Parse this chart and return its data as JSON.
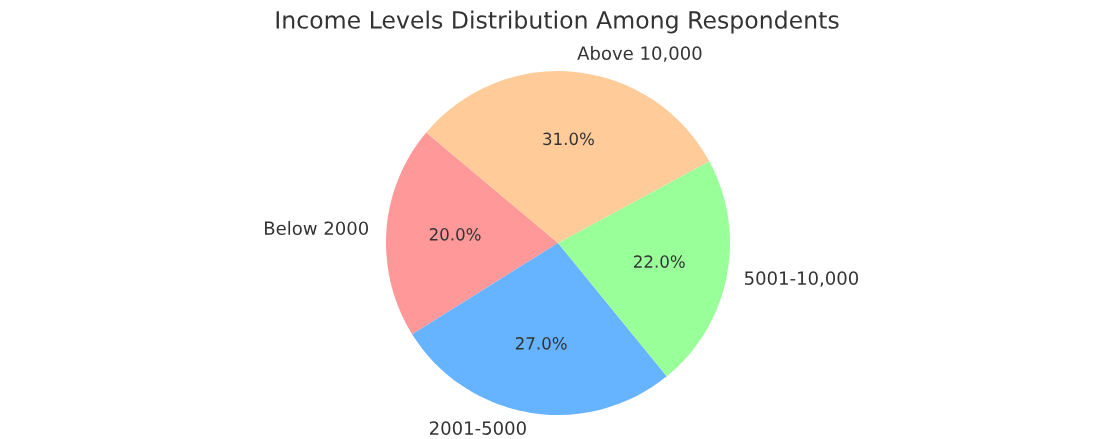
{
  "chart_data": {
    "type": "pie",
    "title": "Income Levels Distribution Among Respondents",
    "categories": [
      "Below 2000",
      "2001-5000",
      "5001-10,000",
      "Above 10,000"
    ],
    "values": [
      20,
      27,
      22,
      31
    ],
    "colors": [
      "#ff9999",
      "#66b3ff",
      "#99ff99",
      "#ffcc99"
    ],
    "value_labels": [
      "20.0%",
      "27.0%",
      "22.0%",
      "31.0%"
    ],
    "legend": false
  }
}
